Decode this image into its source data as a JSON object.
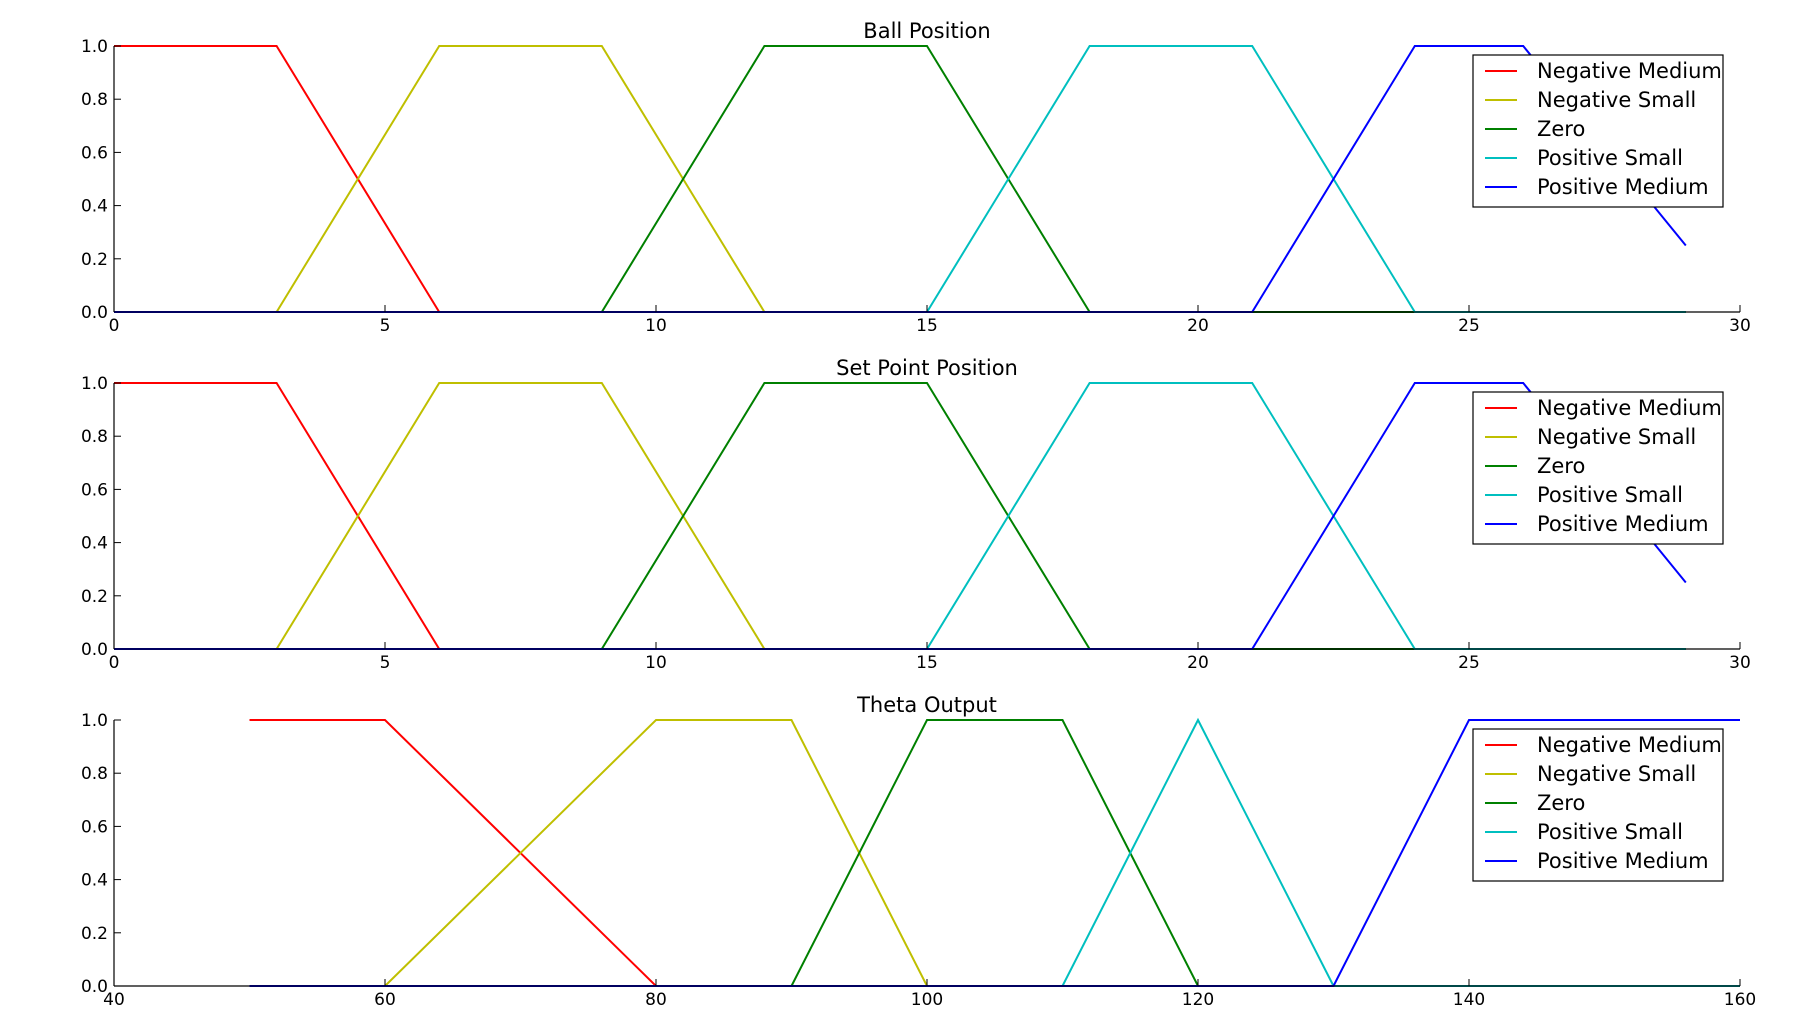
{
  "legend_entries": [
    {
      "name": "Negative Medium",
      "color": "#ff0000"
    },
    {
      "name": "Negative Small",
      "color": "#bfbf00"
    },
    {
      "name": "Zero",
      "color": "#008000"
    },
    {
      "name": "Positive Small",
      "color": "#00bfbf"
    },
    {
      "name": "Positive Medium",
      "color": "#0000ff"
    }
  ],
  "chart_data": [
    {
      "type": "line",
      "title": "Ball Position",
      "xlabel": "",
      "ylabel": "",
      "xlim": [
        0,
        30
      ],
      "ylim": [
        0,
        1
      ],
      "xticks": [
        0,
        5,
        10,
        15,
        20,
        25,
        30
      ],
      "xtick_labels": [
        "0",
        "5",
        "10",
        "15",
        "20",
        "25",
        "30"
      ],
      "yticks": [
        0,
        0.2,
        0.4,
        0.6,
        0.8,
        1.0
      ],
      "ytick_labels": [
        "0.0",
        "0.2",
        "0.4",
        "0.6",
        "0.8",
        "1.0"
      ],
      "grid": false,
      "legend": "top-right",
      "series": [
        {
          "name": "Negative Medium",
          "x": [
            0,
            3,
            6,
            29
          ],
          "y": [
            1,
            1,
            0,
            0
          ]
        },
        {
          "name": "Negative Small",
          "x": [
            0,
            3,
            6,
            9,
            12,
            29
          ],
          "y": [
            0,
            0,
            1,
            1,
            0,
            0
          ]
        },
        {
          "name": "Zero",
          "x": [
            0,
            9,
            12,
            15,
            18,
            29
          ],
          "y": [
            0,
            0,
            1,
            1,
            0,
            0
          ]
        },
        {
          "name": "Positive Small",
          "x": [
            0,
            15,
            18,
            21,
            24,
            29
          ],
          "y": [
            0,
            0,
            1,
            1,
            0,
            0
          ]
        },
        {
          "name": "Positive Medium",
          "x": [
            0,
            21,
            24,
            26,
            29
          ],
          "y": [
            0,
            0,
            1,
            1,
            0.25
          ]
        }
      ]
    },
    {
      "type": "line",
      "title": "Set Point Position",
      "xlabel": "",
      "ylabel": "",
      "xlim": [
        0,
        30
      ],
      "ylim": [
        0,
        1
      ],
      "xticks": [
        0,
        5,
        10,
        15,
        20,
        25,
        30
      ],
      "xtick_labels": [
        "0",
        "5",
        "10",
        "15",
        "20",
        "25",
        "30"
      ],
      "yticks": [
        0,
        0.2,
        0.4,
        0.6,
        0.8,
        1.0
      ],
      "ytick_labels": [
        "0.0",
        "0.2",
        "0.4",
        "0.6",
        "0.8",
        "1.0"
      ],
      "grid": false,
      "legend": "top-right",
      "series": [
        {
          "name": "Negative Medium",
          "x": [
            0,
            3,
            6,
            29
          ],
          "y": [
            1,
            1,
            0,
            0
          ]
        },
        {
          "name": "Negative Small",
          "x": [
            0,
            3,
            6,
            9,
            12,
            29
          ],
          "y": [
            0,
            0,
            1,
            1,
            0,
            0
          ]
        },
        {
          "name": "Zero",
          "x": [
            0,
            9,
            12,
            15,
            18,
            29
          ],
          "y": [
            0,
            0,
            1,
            1,
            0,
            0
          ]
        },
        {
          "name": "Positive Small",
          "x": [
            0,
            15,
            18,
            21,
            24,
            29
          ],
          "y": [
            0,
            0,
            1,
            1,
            0,
            0
          ]
        },
        {
          "name": "Positive Medium",
          "x": [
            0,
            21,
            24,
            26,
            29
          ],
          "y": [
            0,
            0,
            1,
            1,
            0.25
          ]
        }
      ]
    },
    {
      "type": "line",
      "title": "Theta Output",
      "xlabel": "",
      "ylabel": "",
      "xlim": [
        40,
        160
      ],
      "ylim": [
        0,
        1
      ],
      "xticks": [
        40,
        60,
        80,
        100,
        120,
        140,
        160
      ],
      "xtick_labels": [
        "40",
        "60",
        "80",
        "100",
        "120",
        "140",
        "160"
      ],
      "yticks": [
        0,
        0.2,
        0.4,
        0.6,
        0.8,
        1.0
      ],
      "ytick_labels": [
        "0.0",
        "0.2",
        "0.4",
        "0.6",
        "0.8",
        "1.0"
      ],
      "grid": false,
      "legend": "top-right",
      "series": [
        {
          "name": "Negative Medium",
          "x": [
            50,
            60,
            80,
            160
          ],
          "y": [
            1,
            1,
            0,
            0
          ]
        },
        {
          "name": "Negative Small",
          "x": [
            50,
            60,
            80,
            90,
            100,
            160
          ],
          "y": [
            0,
            0,
            1,
            1,
            0,
            0
          ]
        },
        {
          "name": "Zero",
          "x": [
            50,
            90,
            100,
            110,
            120,
            160
          ],
          "y": [
            0,
            0,
            1,
            1,
            0,
            0
          ]
        },
        {
          "name": "Positive Small",
          "x": [
            50,
            110,
            120,
            130,
            160
          ],
          "y": [
            0,
            0,
            1,
            0,
            0
          ]
        },
        {
          "name": "Positive Medium",
          "x": [
            50,
            130,
            140,
            160
          ],
          "y": [
            0,
            0,
            1,
            1
          ]
        }
      ]
    }
  ]
}
